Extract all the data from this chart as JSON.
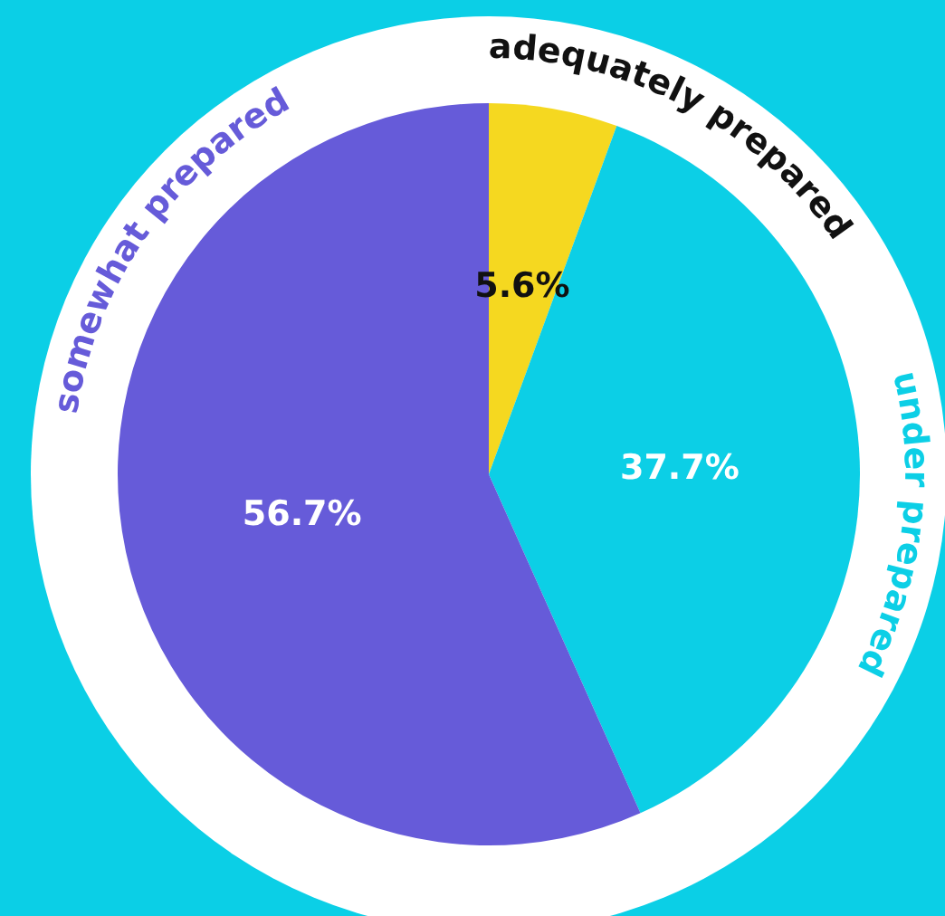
{
  "chart_data": {
    "type": "pie",
    "categories": [
      "adequately prepared",
      "under prepared",
      "somewhat prepared"
    ],
    "values": [
      5.6,
      37.7,
      56.7
    ],
    "colors": [
      "#f5d820",
      "#0ccfe6",
      "#665bd9"
    ],
    "value_labels": [
      "5.6%",
      "37.7%",
      "56.7%"
    ],
    "legend": false
  }
}
